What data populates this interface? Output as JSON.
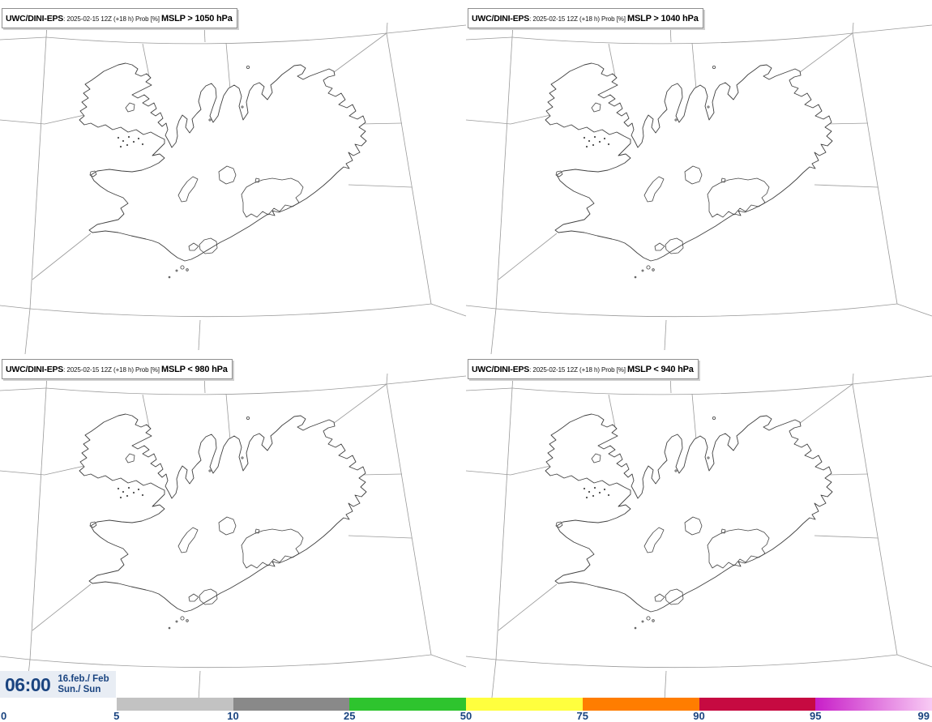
{
  "panels": [
    {
      "brand": "UWC/DINI-EPS",
      "run": ": 2025-02-15 12Z (+18 h) Prob [%] ",
      "threshold": "MSLP > 1050 hPa"
    },
    {
      "brand": "UWC/DINI-EPS",
      "run": ": 2025-02-15 12Z (+18 h) Prob [%] ",
      "threshold": "MSLP > 1040 hPa"
    },
    {
      "brand": "UWC/DINI-EPS",
      "run": ": 2025-02-15 12Z (+18 h) Prob [%] ",
      "threshold": "MSLP < 980 hPa"
    },
    {
      "brand": "UWC/DINI-EPS",
      "run": ": 2025-02-15 12Z (+18 h) Prob [%] ",
      "threshold": "MSLP < 940 hPa"
    }
  ],
  "footer": {
    "time": "06:00",
    "date_line1": "16.feb./ Feb",
    "date_line2": "Sun./ Sun"
  },
  "colorbar": {
    "unit": "Prob [%]",
    "ticks": [
      "0",
      "5",
      "10",
      "25",
      "50",
      "75",
      "90",
      "95",
      "99"
    ],
    "text_color": "#1a4480",
    "segments": [
      {
        "range": "0-5",
        "color": "#ffffff"
      },
      {
        "range": "5-10",
        "color": "#c2c2c2"
      },
      {
        "range": "10-25",
        "color": "#898989"
      },
      {
        "range": "25-50",
        "color": "#2ec42e"
      },
      {
        "range": "50-75",
        "color": "#ffff3e"
      },
      {
        "range": "75-90",
        "color": "#ff7d00"
      },
      {
        "range": "90-95",
        "color": "#c60a41"
      },
      {
        "range": "95-99",
        "color": "#c81fc8",
        "color_end": "#f8cbf4",
        "gradient": true
      }
    ]
  }
}
